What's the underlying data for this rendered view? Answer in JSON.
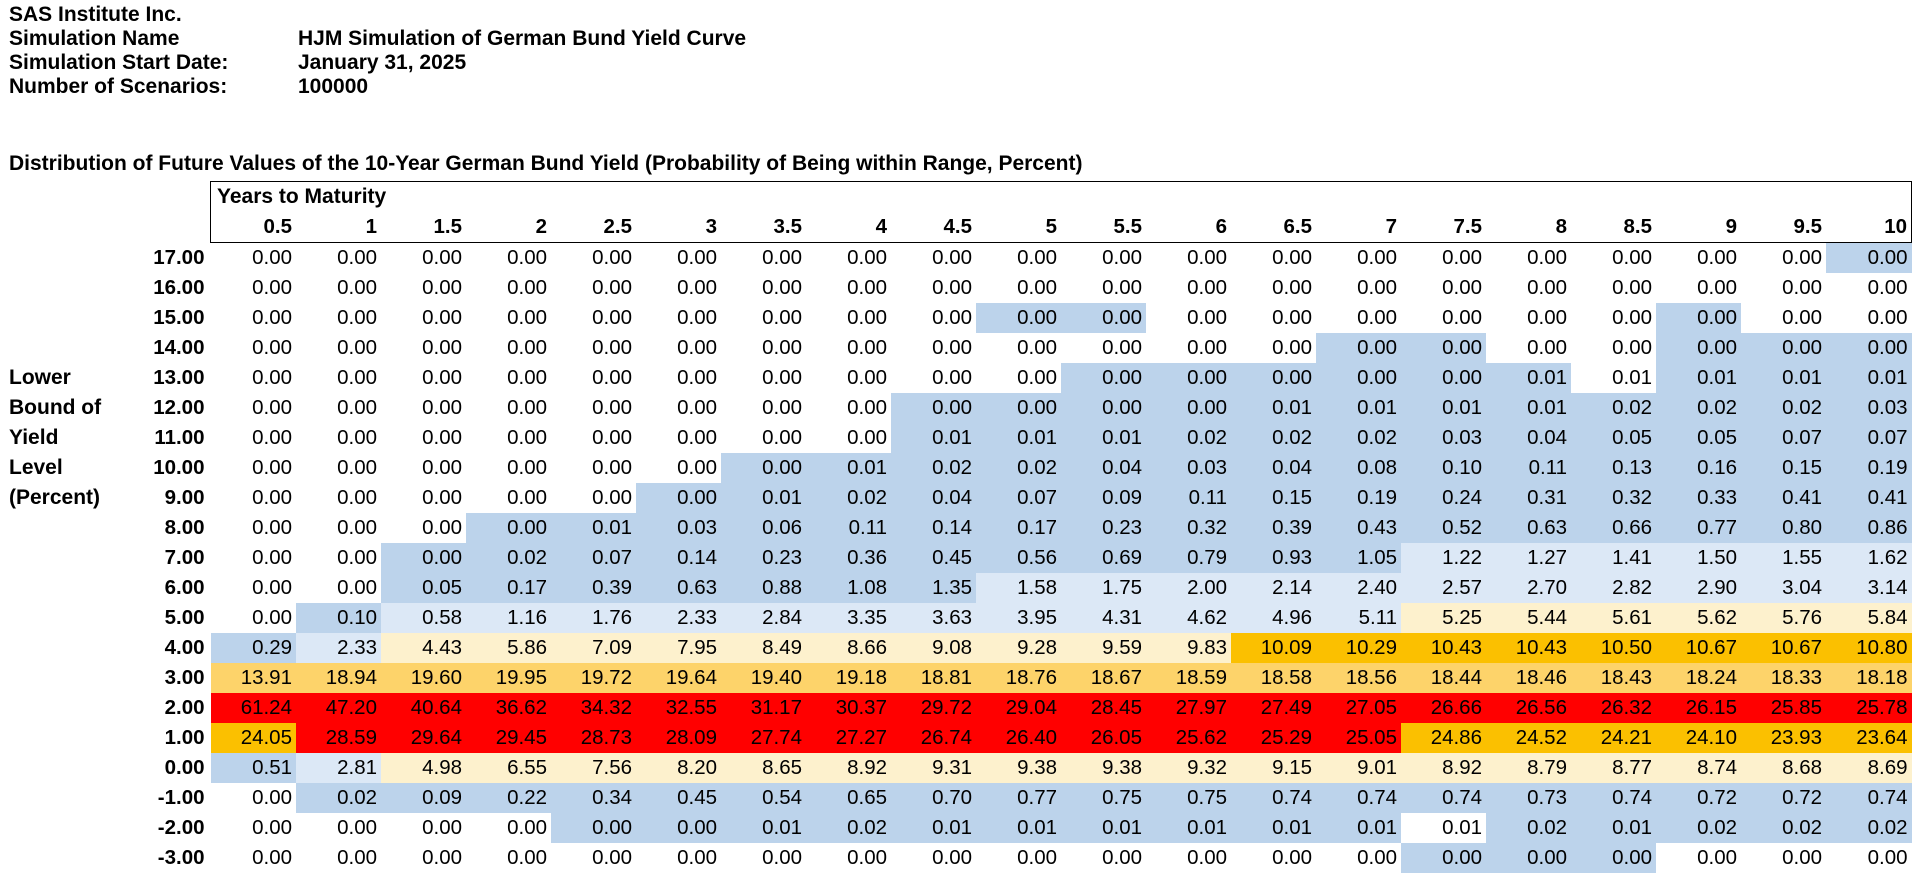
{
  "meta": {
    "company": "SAS Institute Inc.",
    "rows": [
      {
        "label": "Simulation Name",
        "value": "HJM Simulation of German Bund Yield Curve"
      },
      {
        "label": "Simulation Start Date:",
        "value": "January 31, 2025"
      },
      {
        "label": "Number of Scenarios:",
        "value": "100000"
      }
    ]
  },
  "distribution": {
    "title": "Distribution of Future Values of the 10-Year German Bund Yield (Probability of Being within Range, Percent)",
    "column_header_title": "Years to Maturity",
    "row_axis_label": [
      "Lower",
      "Bound of",
      "Yield",
      "Level",
      "(Percent)"
    ],
    "maturities": [
      "0.5",
      "1",
      "1.5",
      "2",
      "2.5",
      "3",
      "3.5",
      "4",
      "4.5",
      "5",
      "5.5",
      "6",
      "6.5",
      "7",
      "7.5",
      "8",
      "8.5",
      "9",
      "9.5",
      "10"
    ],
    "rows": [
      {
        "bound": "17.00",
        "values": [
          "0.00",
          "0.00",
          "0.00",
          "0.00",
          "0.00",
          "0.00",
          "0.00",
          "0.00",
          "0.00",
          "0.00",
          "0.00",
          "0.00",
          "0.00",
          "0.00",
          "0.00",
          "0.00",
          "0.00",
          "0.00",
          "0.00",
          "0.00"
        ]
      },
      {
        "bound": "16.00",
        "values": [
          "0.00",
          "0.00",
          "0.00",
          "0.00",
          "0.00",
          "0.00",
          "0.00",
          "0.00",
          "0.00",
          "0.00",
          "0.00",
          "0.00",
          "0.00",
          "0.00",
          "0.00",
          "0.00",
          "0.00",
          "0.00",
          "0.00",
          "0.00"
        ]
      },
      {
        "bound": "15.00",
        "values": [
          "0.00",
          "0.00",
          "0.00",
          "0.00",
          "0.00",
          "0.00",
          "0.00",
          "0.00",
          "0.00",
          "0.00",
          "0.00",
          "0.00",
          "0.00",
          "0.00",
          "0.00",
          "0.00",
          "0.00",
          "0.00",
          "0.00",
          "0.00"
        ]
      },
      {
        "bound": "14.00",
        "values": [
          "0.00",
          "0.00",
          "0.00",
          "0.00",
          "0.00",
          "0.00",
          "0.00",
          "0.00",
          "0.00",
          "0.00",
          "0.00",
          "0.00",
          "0.00",
          "0.00",
          "0.00",
          "0.00",
          "0.00",
          "0.00",
          "0.00",
          "0.00"
        ]
      },
      {
        "bound": "13.00",
        "values": [
          "0.00",
          "0.00",
          "0.00",
          "0.00",
          "0.00",
          "0.00",
          "0.00",
          "0.00",
          "0.00",
          "0.00",
          "0.00",
          "0.00",
          "0.00",
          "0.00",
          "0.00",
          "0.01",
          "0.01",
          "0.01",
          "0.01",
          "0.01"
        ]
      },
      {
        "bound": "12.00",
        "values": [
          "0.00",
          "0.00",
          "0.00",
          "0.00",
          "0.00",
          "0.00",
          "0.00",
          "0.00",
          "0.00",
          "0.00",
          "0.00",
          "0.00",
          "0.01",
          "0.01",
          "0.01",
          "0.01",
          "0.02",
          "0.02",
          "0.02",
          "0.03"
        ]
      },
      {
        "bound": "11.00",
        "values": [
          "0.00",
          "0.00",
          "0.00",
          "0.00",
          "0.00",
          "0.00",
          "0.00",
          "0.00",
          "0.01",
          "0.01",
          "0.01",
          "0.02",
          "0.02",
          "0.02",
          "0.03",
          "0.04",
          "0.05",
          "0.05",
          "0.07",
          "0.07"
        ]
      },
      {
        "bound": "10.00",
        "values": [
          "0.00",
          "0.00",
          "0.00",
          "0.00",
          "0.00",
          "0.00",
          "0.00",
          "0.01",
          "0.02",
          "0.02",
          "0.04",
          "0.03",
          "0.04",
          "0.08",
          "0.10",
          "0.11",
          "0.13",
          "0.16",
          "0.15",
          "0.19"
        ]
      },
      {
        "bound": "9.00",
        "values": [
          "0.00",
          "0.00",
          "0.00",
          "0.00",
          "0.00",
          "0.00",
          "0.01",
          "0.02",
          "0.04",
          "0.07",
          "0.09",
          "0.11",
          "0.15",
          "0.19",
          "0.24",
          "0.31",
          "0.32",
          "0.33",
          "0.41",
          "0.41"
        ]
      },
      {
        "bound": "8.00",
        "values": [
          "0.00",
          "0.00",
          "0.00",
          "0.00",
          "0.01",
          "0.03",
          "0.06",
          "0.11",
          "0.14",
          "0.17",
          "0.23",
          "0.32",
          "0.39",
          "0.43",
          "0.52",
          "0.63",
          "0.66",
          "0.77",
          "0.80",
          "0.86"
        ]
      },
      {
        "bound": "7.00",
        "values": [
          "0.00",
          "0.00",
          "0.00",
          "0.02",
          "0.07",
          "0.14",
          "0.23",
          "0.36",
          "0.45",
          "0.56",
          "0.69",
          "0.79",
          "0.93",
          "1.05",
          "1.22",
          "1.27",
          "1.41",
          "1.50",
          "1.55",
          "1.62"
        ]
      },
      {
        "bound": "6.00",
        "values": [
          "0.00",
          "0.00",
          "0.05",
          "0.17",
          "0.39",
          "0.63",
          "0.88",
          "1.08",
          "1.35",
          "1.58",
          "1.75",
          "2.00",
          "2.14",
          "2.40",
          "2.57",
          "2.70",
          "2.82",
          "2.90",
          "3.04",
          "3.14"
        ]
      },
      {
        "bound": "5.00",
        "values": [
          "0.00",
          "0.10",
          "0.58",
          "1.16",
          "1.76",
          "2.33",
          "2.84",
          "3.35",
          "3.63",
          "3.95",
          "4.31",
          "4.62",
          "4.96",
          "5.11",
          "5.25",
          "5.44",
          "5.61",
          "5.62",
          "5.76",
          "5.84"
        ]
      },
      {
        "bound": "4.00",
        "values": [
          "0.29",
          "2.33",
          "4.43",
          "5.86",
          "7.09",
          "7.95",
          "8.49",
          "8.66",
          "9.08",
          "9.28",
          "9.59",
          "9.83",
          "10.09",
          "10.29",
          "10.43",
          "10.43",
          "10.50",
          "10.67",
          "10.67",
          "10.80"
        ]
      },
      {
        "bound": "3.00",
        "values": [
          "13.91",
          "18.94",
          "19.60",
          "19.95",
          "19.72",
          "19.64",
          "19.40",
          "19.18",
          "18.81",
          "18.76",
          "18.67",
          "18.59",
          "18.58",
          "18.56",
          "18.44",
          "18.46",
          "18.43",
          "18.24",
          "18.33",
          "18.18"
        ]
      },
      {
        "bound": "2.00",
        "values": [
          "61.24",
          "47.20",
          "40.64",
          "36.62",
          "34.32",
          "32.55",
          "31.17",
          "30.37",
          "29.72",
          "29.04",
          "28.45",
          "27.97",
          "27.49",
          "27.05",
          "26.66",
          "26.56",
          "26.32",
          "26.15",
          "25.85",
          "25.78"
        ]
      },
      {
        "bound": "1.00",
        "values": [
          "24.05",
          "28.59",
          "29.64",
          "29.45",
          "28.73",
          "28.09",
          "27.74",
          "27.27",
          "26.74",
          "26.40",
          "26.05",
          "25.62",
          "25.29",
          "25.05",
          "24.86",
          "24.52",
          "24.21",
          "24.10",
          "23.93",
          "23.64"
        ]
      },
      {
        "bound": "0.00",
        "values": [
          "0.51",
          "2.81",
          "4.98",
          "6.55",
          "7.56",
          "8.20",
          "8.65",
          "8.92",
          "9.31",
          "9.38",
          "9.38",
          "9.32",
          "9.15",
          "9.01",
          "8.92",
          "8.79",
          "8.77",
          "8.74",
          "8.68",
          "8.69"
        ]
      },
      {
        "bound": "-1.00",
        "values": [
          "0.00",
          "0.02",
          "0.09",
          "0.22",
          "0.34",
          "0.45",
          "0.54",
          "0.65",
          "0.70",
          "0.77",
          "0.75",
          "0.75",
          "0.74",
          "0.74",
          "0.74",
          "0.73",
          "0.74",
          "0.72",
          "0.72",
          "0.74"
        ]
      },
      {
        "bound": "-2.00",
        "values": [
          "0.00",
          "0.00",
          "0.00",
          "0.00",
          "0.00",
          "0.00",
          "0.01",
          "0.02",
          "0.01",
          "0.01",
          "0.01",
          "0.01",
          "0.01",
          "0.01",
          "0.01",
          "0.02",
          "0.01",
          "0.02",
          "0.02",
          "0.02"
        ]
      },
      {
        "bound": "-3.00",
        "values": [
          "0.00",
          "0.00",
          "0.00",
          "0.00",
          "0.00",
          "0.00",
          "0.00",
          "0.00",
          "0.00",
          "0.00",
          "0.00",
          "0.00",
          "0.00",
          "0.00",
          "0.00",
          "0.00",
          "0.00",
          "0.00",
          "0.00",
          "0.00"
        ]
      }
    ],
    "shading": [
      "00000000000000000001",
      "00000000000000000000",
      "00000000011000000100",
      "00000000000001100111",
      "00000000001111110111",
      "00000000111111111111",
      "00000000111111111111",
      "00000011111111111111",
      "00000111111111111111",
      "00011111111111111111",
      "00111111111111222222",
      "00111111122222222222",
      "01222222222222333333",
      "12333333333355555555",
      "44444444444444444444",
      "66666666666666666666",
      "56666666666666555555",
      "12333333333333333333",
      "01111111111111111111",
      "00001111111111011111",
      "00000000000000111000"
    ],
    "palette": {
      "0": "#ffffff",
      "1": "#bcd3eb",
      "2": "#dce8f6",
      "3": "#fdf1cd",
      "4": "#fdd36a",
      "5": "#fbc000",
      "6": "#ff0000"
    }
  }
}
